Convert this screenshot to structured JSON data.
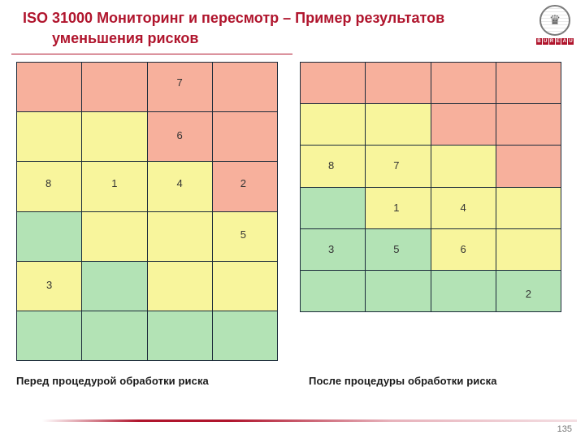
{
  "slide": {
    "title_line1": "ISO 31000 Мониторинг и пересмотр – Пример  результатов",
    "title_line2": "уменьшения рисков",
    "page_number": "135"
  },
  "logo": {
    "text": "BUREAU VERITAS",
    "seal_symbol": "♛",
    "band_letters": [
      "B",
      "U",
      "R",
      "E",
      "A",
      "U"
    ]
  },
  "colors": {
    "title": "#b0152d",
    "high_risk": "#f7b09c",
    "medium_risk": "#f8f59c",
    "low_risk": "#b3e3b5",
    "grid_line": "#1c2b3a"
  },
  "before_matrix": {
    "caption": "Перед процедурой обработки риска",
    "colors": [
      [
        "r",
        "r",
        "r",
        "r"
      ],
      [
        "y",
        "y",
        "r",
        "r"
      ],
      [
        "y",
        "y",
        "y",
        "r"
      ],
      [
        "g",
        "y",
        "y",
        "y"
      ],
      [
        "y",
        "g",
        "y",
        "y"
      ],
      [
        "g",
        "g",
        "g",
        "g"
      ]
    ],
    "values": [
      [
        "",
        "",
        "7",
        ""
      ],
      [
        "",
        "",
        "6",
        ""
      ],
      [
        "8",
        "1",
        "4",
        "2"
      ],
      [
        "",
        "",
        "",
        "5"
      ],
      [
        "3",
        "",
        "",
        ""
      ],
      [
        "",
        "",
        "",
        ""
      ]
    ]
  },
  "after_matrix": {
    "caption": "После процедуры обработки риска",
    "colors": [
      [
        "r",
        "r",
        "r",
        "r"
      ],
      [
        "y",
        "y",
        "r",
        "r"
      ],
      [
        "y",
        "y",
        "y",
        "r"
      ],
      [
        "g",
        "y",
        "y",
        "y"
      ],
      [
        "g",
        "g",
        "y",
        "y"
      ],
      [
        "g",
        "g",
        "g",
        "g"
      ]
    ],
    "values": [
      [
        "",
        "",
        "",
        ""
      ],
      [
        "",
        "",
        "",
        ""
      ],
      [
        "8",
        "7",
        "",
        ""
      ],
      [
        "",
        "1",
        "4",
        ""
      ],
      [
        "3",
        "5",
        "6",
        ""
      ],
      [
        "",
        "",
        "",
        "2"
      ]
    ]
  }
}
